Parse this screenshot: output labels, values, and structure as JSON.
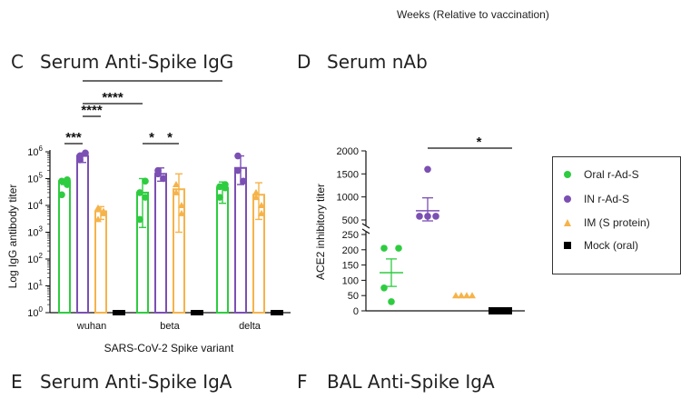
{
  "header": {
    "top_caption": "Weeks (Relative to vaccination)"
  },
  "panels": {
    "c": {
      "letter": "C",
      "title": "Serum Anti-Spike IgG"
    },
    "d": {
      "letter": "D",
      "title": "Serum nAb"
    },
    "e": {
      "letter": "E",
      "title": "Serum Anti-Spike IgA"
    },
    "f": {
      "letter": "F",
      "title": "BAL Anti-Spike IgA"
    }
  },
  "legend": {
    "items": [
      {
        "label": "Oral r-Ad-S",
        "color": "#2ecc40",
        "marker": "circle"
      },
      {
        "label": "IN r-Ad-S",
        "color": "#7b4fb3",
        "marker": "circle"
      },
      {
        "label": "IM (S protein)",
        "color": "#f6b34a",
        "marker": "triangle"
      },
      {
        "label": "Mock (oral)",
        "color": "#000000",
        "marker": "square"
      }
    ]
  },
  "chart_data": [
    {
      "type": "bar",
      "title": "Serum Anti-Spike IgG",
      "xlabel": "SARS-CoV-2 Spike variant",
      "ylabel": "Log IgG antibody titer",
      "yscale": "log",
      "ylim": [
        1,
        1000000
      ],
      "ytick_labels": [
        "10^0",
        "10^1",
        "10^2",
        "10^3",
        "10^4",
        "10^5",
        "10^6"
      ],
      "categories": [
        "wuhan",
        "beta",
        "delta"
      ],
      "series": [
        {
          "name": "Oral r-Ad-S",
          "color": "#2ecc40",
          "marker": "circle",
          "values": [
            80000,
            30000,
            45000
          ],
          "error_low": [
            60000,
            1500,
            12000
          ],
          "error_high": [
            90000,
            100000,
            75000
          ],
          "points": [
            [
              80000,
              60000,
              25000,
              90000
            ],
            [
              30000,
              80000,
              3000,
              20000
            ],
            [
              50000,
              60000,
              20000,
              45000
            ]
          ]
        },
        {
          "name": "IN r-Ad-S",
          "color": "#7b4fb3",
          "marker": "circle",
          "values": [
            700000,
            150000,
            250000
          ],
          "error_low": [
            400000,
            80000,
            60000
          ],
          "error_high": [
            900000,
            250000,
            700000
          ],
          "points": [
            [
              500000,
              900000,
              700000
            ],
            [
              200000,
              100000,
              150000
            ],
            [
              700000,
              80000,
              200000
            ]
          ]
        },
        {
          "name": "IM (S protein)",
          "color": "#f6b34a",
          "marker": "triangle",
          "values": [
            6000,
            40000,
            25000
          ],
          "error_low": [
            3000,
            1000,
            3000
          ],
          "error_high": [
            9000,
            150000,
            70000
          ],
          "points": [
            [
              8000,
              5000,
              3000,
              6000
            ],
            [
              60000,
              5000,
              30000,
              10000
            ],
            [
              20000,
              5000,
              30000,
              10000
            ]
          ]
        },
        {
          "name": "Mock (oral)",
          "color": "#000000",
          "marker": "square",
          "values": [
            1,
            1,
            1
          ],
          "error_low": [
            1,
            1,
            1
          ],
          "error_high": [
            1,
            1,
            1
          ],
          "points": [
            [
              1,
              1,
              1
            ],
            [
              1,
              1,
              1
            ],
            [
              1,
              1,
              1
            ]
          ]
        }
      ],
      "significance": [
        {
          "label": "***",
          "from": "wuhan:Oral r-Ad-S",
          "to": "wuhan:IN r-Ad-S"
        },
        {
          "label": "****",
          "from": "wuhan:IN r-Ad-S",
          "to": "wuhan:IM (S protein)"
        },
        {
          "label": "****",
          "from": "wuhan:IN r-Ad-S",
          "to": "beta:Oral r-Ad-S"
        },
        {
          "label": "**",
          "from": "wuhan:IN r-Ad-S",
          "to": "delta:Oral r-Ad-S"
        },
        {
          "label": "*",
          "from": "beta:Oral r-Ad-S",
          "to": "beta:IN r-Ad-S"
        },
        {
          "label": "*",
          "from": "beta:IN r-Ad-S",
          "to": "beta:IM (S protein)"
        }
      ]
    },
    {
      "type": "scatter",
      "title": "Serum nAb",
      "ylabel": "ACE2 inhibitory titer",
      "y_axis_break": [
        250,
        400
      ],
      "ylim": [
        0,
        2000
      ],
      "ytick_labels": [
        "0",
        "50",
        "100",
        "150",
        "200",
        "250",
        "500",
        "1000",
        "1500",
        "2000"
      ],
      "groups": [
        {
          "name": "Oral r-Ad-S",
          "color": "#2ecc40",
          "marker": "circle",
          "points": [
            205,
            205,
            75,
            30
          ],
          "mean": 125,
          "sem": [
            80,
            170
          ]
        },
        {
          "name": "IN r-Ad-S",
          "color": "#7b4fb3",
          "marker": "circle",
          "points": [
            1600,
            580,
            580,
            580
          ],
          "mean": 700,
          "sem": [
            480,
            980
          ]
        },
        {
          "name": "IM (S protein)",
          "color": "#f6b34a",
          "marker": "triangle",
          "points": [
            50,
            50,
            50,
            50
          ],
          "mean": 50,
          "sem": [
            50,
            50
          ]
        },
        {
          "name": "Mock (oral)",
          "color": "#000000",
          "marker": "square",
          "points": [
            0,
            0,
            0,
            0
          ],
          "mean": 0,
          "sem": [
            0,
            0
          ]
        }
      ],
      "significance": [
        {
          "label": "*",
          "from": "IN r-Ad-S",
          "to": "Mock (oral)"
        }
      ]
    }
  ]
}
